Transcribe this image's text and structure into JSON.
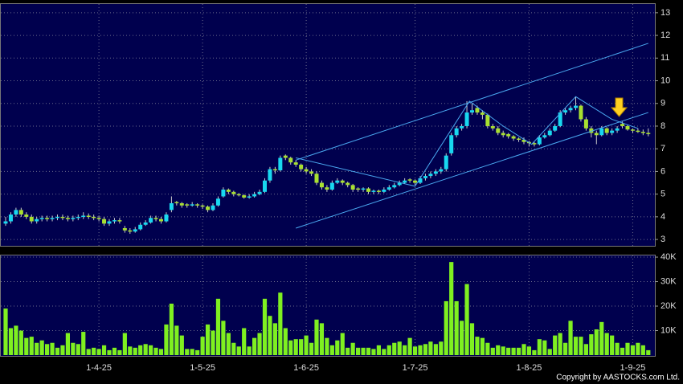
{
  "chart_data": {
    "type": "candlestick",
    "categories": [
      null,
      null,
      null,
      null,
      null,
      null,
      null,
      null,
      null,
      null,
      null,
      null,
      null,
      null,
      null,
      null,
      null,
      null,
      "1-4-25",
      null,
      null,
      null,
      null,
      null,
      null,
      null,
      null,
      null,
      null,
      null,
      null,
      null,
      null,
      null,
      null,
      null,
      null,
      null,
      "1-5-25",
      null,
      null,
      null,
      null,
      null,
      null,
      null,
      null,
      null,
      null,
      null,
      null,
      null,
      null,
      null,
      null,
      null,
      null,
      null,
      "1-6-25",
      null,
      null,
      null,
      null,
      null,
      null,
      null,
      null,
      null,
      null,
      null,
      null,
      null,
      null,
      null,
      null,
      null,
      null,
      null,
      null,
      "1-7-25",
      null,
      null,
      null,
      null,
      null,
      null,
      null,
      null,
      null,
      null,
      null,
      null,
      null,
      null,
      null,
      null,
      null,
      null,
      null,
      null,
      null,
      "1-8-25",
      null,
      null,
      null,
      null,
      null,
      null,
      null,
      null,
      null,
      null,
      null,
      null,
      null,
      null,
      null,
      null,
      null,
      null,
      null,
      "1-9-25",
      null,
      null,
      null
    ],
    "ohlc": [
      [
        3.7,
        4.0,
        3.6,
        3.8
      ],
      [
        3.8,
        4.2,
        3.7,
        4.1
      ],
      [
        4.1,
        4.4,
        4.0,
        4.3
      ],
      [
        4.3,
        4.4,
        4.0,
        4.1
      ],
      [
        4.1,
        4.2,
        3.9,
        4.0
      ],
      [
        4.0,
        4.1,
        3.7,
        3.8
      ],
      [
        3.8,
        4.0,
        3.7,
        3.9
      ],
      [
        3.9,
        4.05,
        3.8,
        3.95
      ],
      [
        3.95,
        4.05,
        3.8,
        3.9
      ],
      [
        3.9,
        4.05,
        3.8,
        3.95
      ],
      [
        3.95,
        4.1,
        3.85,
        4.0
      ],
      [
        4.0,
        4.1,
        3.85,
        3.95
      ],
      [
        3.95,
        4.05,
        3.8,
        3.9
      ],
      [
        3.9,
        4.05,
        3.8,
        3.95
      ],
      [
        3.95,
        4.1,
        3.85,
        4.0
      ],
      [
        4.0,
        4.2,
        3.9,
        4.05
      ],
      [
        4.05,
        4.15,
        3.9,
        4.0
      ],
      [
        4.0,
        4.1,
        3.85,
        3.95
      ],
      [
        3.95,
        4.05,
        3.8,
        3.9
      ],
      [
        3.9,
        4.0,
        3.6,
        3.7
      ],
      [
        3.7,
        3.9,
        3.6,
        3.8
      ],
      [
        3.8,
        3.95,
        3.7,
        3.85
      ],
      [
        3.85,
        3.95,
        3.7,
        3.8
      ],
      [
        3.5,
        3.6,
        3.3,
        3.4
      ],
      [
        3.4,
        3.5,
        3.25,
        3.35
      ],
      [
        3.35,
        3.55,
        3.3,
        3.45
      ],
      [
        3.45,
        3.75,
        3.4,
        3.65
      ],
      [
        3.65,
        3.85,
        3.6,
        3.75
      ],
      [
        3.75,
        4.05,
        3.7,
        3.95
      ],
      [
        3.95,
        4.05,
        3.8,
        3.9
      ],
      [
        3.9,
        4.0,
        3.7,
        3.8
      ],
      [
        3.8,
        4.2,
        3.75,
        4.1
      ],
      [
        4.3,
        4.9,
        4.2,
        4.6
      ],
      [
        4.65,
        4.7,
        4.5,
        4.6
      ],
      [
        4.6,
        4.65,
        4.4,
        4.5
      ],
      [
        4.55,
        4.6,
        4.4,
        4.5
      ],
      [
        4.5,
        4.65,
        4.45,
        4.55
      ],
      [
        4.55,
        4.6,
        4.4,
        4.5
      ],
      [
        4.5,
        4.55,
        4.35,
        4.45
      ],
      [
        4.45,
        4.5,
        4.2,
        4.3
      ],
      [
        4.3,
        4.6,
        4.25,
        4.5
      ],
      [
        4.5,
        4.9,
        4.45,
        4.8
      ],
      [
        4.9,
        5.3,
        4.85,
        5.2
      ],
      [
        5.2,
        5.25,
        5.0,
        5.1
      ],
      [
        5.1,
        5.15,
        4.9,
        5.0
      ],
      [
        5.0,
        5.05,
        4.9,
        4.95
      ],
      [
        4.95,
        5.0,
        4.8,
        4.85
      ],
      [
        4.85,
        5.0,
        4.8,
        4.9
      ],
      [
        4.9,
        5.1,
        4.85,
        5.0
      ],
      [
        5.0,
        5.2,
        4.95,
        5.1
      ],
      [
        5.1,
        5.7,
        5.05,
        5.6
      ],
      [
        5.6,
        6.2,
        5.5,
        6.1
      ],
      [
        6.1,
        6.2,
        5.9,
        6.05
      ],
      [
        6.05,
        6.7,
        6.0,
        6.6
      ],
      [
        6.7,
        6.75,
        6.5,
        6.6
      ],
      [
        6.6,
        6.65,
        6.3,
        6.4
      ],
      [
        6.4,
        6.5,
        6.2,
        6.3
      ],
      [
        6.3,
        6.35,
        6.0,
        6.1
      ],
      [
        6.1,
        6.2,
        5.9,
        6.0
      ],
      [
        6.0,
        6.1,
        5.8,
        5.9
      ],
      [
        5.9,
        6.0,
        5.4,
        5.5
      ],
      [
        5.5,
        5.6,
        5.2,
        5.3
      ],
      [
        5.3,
        5.4,
        5.1,
        5.2
      ],
      [
        5.2,
        5.6,
        5.15,
        5.5
      ],
      [
        5.5,
        5.7,
        5.45,
        5.6
      ],
      [
        5.6,
        5.65,
        5.4,
        5.5
      ],
      [
        5.5,
        5.55,
        5.3,
        5.4
      ],
      [
        5.4,
        5.45,
        5.1,
        5.2
      ],
      [
        5.25,
        5.3,
        5.1,
        5.2
      ],
      [
        5.2,
        5.3,
        5.1,
        5.25
      ],
      [
        5.25,
        5.3,
        5.0,
        5.1
      ],
      [
        5.1,
        5.2,
        5.0,
        5.15
      ],
      [
        5.15,
        5.2,
        5.0,
        5.1
      ],
      [
        5.1,
        5.3,
        5.05,
        5.2
      ],
      [
        5.2,
        5.4,
        5.15,
        5.3
      ],
      [
        5.3,
        5.5,
        5.25,
        5.4
      ],
      [
        5.4,
        5.6,
        5.35,
        5.5
      ],
      [
        5.5,
        5.7,
        5.45,
        5.6
      ],
      [
        5.65,
        5.7,
        5.5,
        5.6
      ],
      [
        5.6,
        5.65,
        5.4,
        5.5
      ],
      [
        5.5,
        5.8,
        5.45,
        5.7
      ],
      [
        5.7,
        5.9,
        5.6,
        5.8
      ],
      [
        5.8,
        6.0,
        5.7,
        5.9
      ],
      [
        5.9,
        6.1,
        5.8,
        6.0
      ],
      [
        6.0,
        6.2,
        5.9,
        6.1
      ],
      [
        6.1,
        6.8,
        6.0,
        6.7
      ],
      [
        6.8,
        7.7,
        6.7,
        7.6
      ],
      [
        7.6,
        8.0,
        7.5,
        7.9
      ],
      [
        7.9,
        8.1,
        7.8,
        8.0
      ],
      [
        8.0,
        9.1,
        7.9,
        8.6
      ],
      [
        8.6,
        9.0,
        8.5,
        8.7
      ],
      [
        8.8,
        8.9,
        8.5,
        8.6
      ],
      [
        8.6,
        8.7,
        8.3,
        8.5
      ],
      [
        8.5,
        8.55,
        7.9,
        8.0
      ],
      [
        8.0,
        8.1,
        7.8,
        7.9
      ],
      [
        7.9,
        8.0,
        7.6,
        7.7
      ],
      [
        7.7,
        7.8,
        7.5,
        7.6
      ],
      [
        7.65,
        7.7,
        7.45,
        7.55
      ],
      [
        7.55,
        7.6,
        7.35,
        7.45
      ],
      [
        7.45,
        7.5,
        7.3,
        7.4
      ],
      [
        7.4,
        7.5,
        7.2,
        7.3
      ],
      [
        7.3,
        7.35,
        7.1,
        7.25
      ],
      [
        7.25,
        7.3,
        7.1,
        7.2
      ],
      [
        7.2,
        7.6,
        7.15,
        7.5
      ],
      [
        7.5,
        7.7,
        7.45,
        7.6
      ],
      [
        7.6,
        7.9,
        7.55,
        7.8
      ],
      [
        7.8,
        8.1,
        7.75,
        8.0
      ],
      [
        8.0,
        8.7,
        7.95,
        8.6
      ],
      [
        8.6,
        8.8,
        8.5,
        8.7
      ],
      [
        8.7,
        8.9,
        8.6,
        8.8
      ],
      [
        8.8,
        9.3,
        8.7,
        8.9
      ],
      [
        8.9,
        8.95,
        8.2,
        8.3
      ],
      [
        8.3,
        8.4,
        7.8,
        7.9
      ],
      [
        7.9,
        8.0,
        7.5,
        7.7
      ],
      [
        7.7,
        7.8,
        7.2,
        7.6
      ],
      [
        7.6,
        8.0,
        7.55,
        7.9
      ],
      [
        7.9,
        7.95,
        7.6,
        7.7
      ],
      [
        7.7,
        7.9,
        7.6,
        7.8
      ],
      [
        7.8,
        8.0,
        7.7,
        7.9
      ],
      [
        8.1,
        8.2,
        7.9,
        8.0
      ],
      [
        8.0,
        8.05,
        7.8,
        7.85
      ],
      [
        7.85,
        7.9,
        7.7,
        7.8
      ],
      [
        7.8,
        7.9,
        7.7,
        7.75
      ],
      [
        7.75,
        7.85,
        7.6,
        7.7
      ],
      [
        7.7,
        7.9,
        7.55,
        7.65
      ]
    ],
    "up_color": "#18d8f0",
    "down_color": "#a8e030",
    "ylim": [
      2.72,
      13.42
    ],
    "yticks": [
      3,
      4,
      5,
      6,
      7,
      8,
      9,
      10,
      11,
      12,
      13
    ],
    "volume": [
      19000,
      11000,
      12000,
      10000,
      7000,
      7500,
      5000,
      6000,
      4500,
      5000,
      3000,
      4000,
      9000,
      5000,
      4500,
      9500,
      2500,
      3000,
      2500,
      4000,
      2000,
      3000,
      2000,
      9000,
      3500,
      3000,
      4000,
      4500,
      4000,
      3000,
      2500,
      12500,
      21000,
      12000,
      8000,
      2500,
      2500,
      2000,
      7500,
      12500,
      10000,
      23000,
      14000,
      9000,
      5000,
      3500,
      11000,
      3500,
      7000,
      9000,
      23000,
      16000,
      13000,
      25500,
      11000,
      6000,
      6500,
      6500,
      8000,
      5000,
      14500,
      13000,
      7000,
      4000,
      6000,
      9000,
      3000,
      5000,
      3000,
      3000,
      3000,
      2500,
      4000,
      2500,
      4000,
      5000,
      5500,
      4000,
      7000,
      3500,
      4000,
      4500,
      5500,
      4500,
      5500,
      22000,
      38000,
      22000,
      14000,
      29000,
      13000,
      7500,
      7000,
      5000,
      3000,
      4000,
      3500,
      3000,
      3000,
      3000,
      4500,
      3500,
      2000,
      6500,
      6000,
      2500,
      8000,
      9000,
      5000,
      14000,
      7500,
      7500,
      4500,
      8500,
      10500,
      13500,
      9000,
      8000,
      5000,
      3000,
      5000,
      4000,
      5000,
      4000,
      2000
    ],
    "volume_color": "#7ff020",
    "vlim": [
      0,
      41000
    ],
    "vticks": [
      {
        "value": 10000,
        "label": "10K"
      },
      {
        "value": 20000,
        "label": "20K"
      },
      {
        "value": 30000,
        "label": "30K"
      },
      {
        "value": 40000,
        "label": "40K"
      }
    ],
    "trend_lines": [
      [
        [
          56,
          6.5
        ],
        [
          124,
          11.65
        ]
      ],
      [
        [
          56,
          3.5
        ],
        [
          124,
          8.6
        ]
      ],
      [
        [
          56,
          6.6
        ],
        [
          79,
          5.35
        ],
        [
          89.5,
          9.1
        ],
        [
          96,
          8.0
        ],
        [
          101.5,
          7.2
        ],
        [
          110,
          9.3
        ],
        [
          117,
          8.3
        ],
        [
          122,
          7.9
        ]
      ]
    ],
    "trend_color": "#4aa8f0",
    "grid": true,
    "copyright": "Copyright by AASTOCKS.com Ltd."
  }
}
